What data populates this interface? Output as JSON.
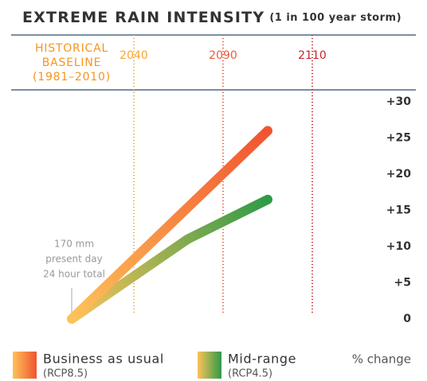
{
  "chart_data": {
    "type": "line",
    "title": "EXTREME RAIN INTENSITY",
    "subtitle": "(1 in 100 year storm)",
    "xticks": [
      {
        "value": 1995,
        "label": [
          "HISTORICAL",
          "BASELINE",
          "(1981–2010)"
        ],
        "color": "#f7941d",
        "divider": false
      },
      {
        "value": 2040,
        "label": "2040",
        "color": "#f7a733",
        "divider": true
      },
      {
        "value": 2090,
        "label": "2090",
        "color": "#ee5a3a",
        "divider": true
      },
      {
        "value": 2110,
        "label": "2110",
        "color": "#c3272f",
        "divider": true
      }
    ],
    "ylim": [
      0,
      30
    ],
    "yticks": [
      0,
      {
        "value": 5,
        "label": "+5"
      },
      {
        "value": 10,
        "label": "+10"
      },
      {
        "value": 15,
        "label": "+15"
      },
      {
        "value": 20,
        "label": "+20"
      },
      {
        "value": 25,
        "label": "+25"
      },
      {
        "value": 30,
        "label": "+30"
      }
    ],
    "y_axis_label": "% change",
    "annotation": [
      "170 mm",
      "present day",
      "24 hour total"
    ],
    "series": [
      {
        "name": "Business as usual",
        "code": "(RCP8.5)",
        "color": [
          "#fdc35a",
          "#f1532f"
        ],
        "x": [
          1995,
          2100
        ],
        "values": [
          0,
          26
        ]
      },
      {
        "name": "Mid-range",
        "code": "(RCP4.5)",
        "color": [
          "#fdc35a",
          "#2f9a48"
        ],
        "x": [
          1995,
          2070,
          2100
        ],
        "values": [
          0,
          11,
          16.5
        ]
      }
    ]
  }
}
